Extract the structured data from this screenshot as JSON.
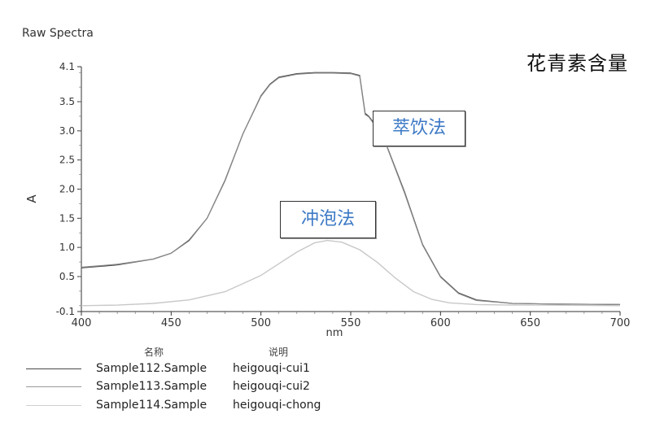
{
  "window_title": "Raw Spectra",
  "top_title": "花青素含量",
  "callouts": {
    "cui": "萃饮法",
    "chong": "冲泡法"
  },
  "legend": {
    "name_header": "名称",
    "desc_header": "说明",
    "items": [
      {
        "sample": "Sample112.Sample",
        "desc": "heigouqi-cui1",
        "color": "#4a4a4a"
      },
      {
        "sample": "Sample113.Sample",
        "desc": "heigouqi-cui2",
        "color": "#9a9a9a"
      },
      {
        "sample": "Sample114.Sample",
        "desc": "heigouqi-chong",
        "color": "#d0d0d0"
      }
    ]
  },
  "chart_data": {
    "type": "line",
    "title": "",
    "xlabel": "nm",
    "ylabel": "A",
    "xlim": [
      400,
      700
    ],
    "ylim": [
      -0.1,
      4.1
    ],
    "xticks": [
      400,
      450,
      500,
      550,
      600,
      650,
      700
    ],
    "yticks": [
      -0.1,
      0.5,
      1.0,
      1.5,
      2.0,
      2.5,
      3.0,
      3.5,
      4.1
    ],
    "ytick_labels": [
      "-0.1",
      "0.5",
      "1.0",
      "1.5",
      "2.0",
      "2.5",
      "3.0",
      "3.5",
      "4.1"
    ],
    "series": [
      {
        "name": "heigouqi-cui1",
        "color": "#3e3e3e",
        "x": [
          400,
          420,
          440,
          450,
          460,
          470,
          480,
          490,
          500,
          505,
          510,
          520,
          530,
          540,
          550,
          555,
          558,
          560,
          565,
          570,
          580,
          590,
          600,
          610,
          620,
          640,
          660,
          700
        ],
        "y": [
          0.65,
          0.7,
          0.8,
          0.9,
          1.12,
          1.5,
          2.15,
          2.95,
          3.6,
          3.8,
          3.92,
          3.98,
          4.0,
          4.0,
          3.99,
          3.95,
          3.3,
          3.25,
          3.05,
          2.75,
          1.95,
          1.05,
          0.5,
          0.22,
          0.1,
          0.04,
          0.03,
          0.02
        ]
      },
      {
        "name": "heigouqi-cui2",
        "color": "#8a8a8a",
        "x": [
          400,
          420,
          440,
          450,
          460,
          470,
          480,
          490,
          500,
          505,
          510,
          520,
          530,
          540,
          550,
          555,
          558,
          560,
          565,
          570,
          580,
          590,
          600,
          610,
          620,
          640,
          660,
          700
        ],
        "y": [
          0.66,
          0.71,
          0.8,
          0.9,
          1.13,
          1.5,
          2.14,
          2.95,
          3.59,
          3.79,
          3.91,
          3.97,
          3.99,
          3.99,
          3.98,
          3.94,
          3.28,
          3.24,
          3.03,
          2.74,
          1.93,
          1.04,
          0.49,
          0.21,
          0.09,
          0.04,
          0.03,
          0.02
        ]
      },
      {
        "name": "heigouqi-chong",
        "color": "#c8c8c8",
        "x": [
          400,
          420,
          440,
          460,
          480,
          500,
          510,
          520,
          530,
          537,
          545,
          555,
          565,
          575,
          585,
          595,
          605,
          620,
          640,
          660,
          700
        ],
        "y": [
          0.0,
          0.01,
          0.04,
          0.1,
          0.24,
          0.52,
          0.72,
          0.92,
          1.08,
          1.12,
          1.09,
          0.96,
          0.74,
          0.47,
          0.24,
          0.11,
          0.05,
          0.02,
          0.01,
          0.01,
          0.0
        ]
      }
    ],
    "grid": false,
    "legend_position": "bottom-left"
  }
}
